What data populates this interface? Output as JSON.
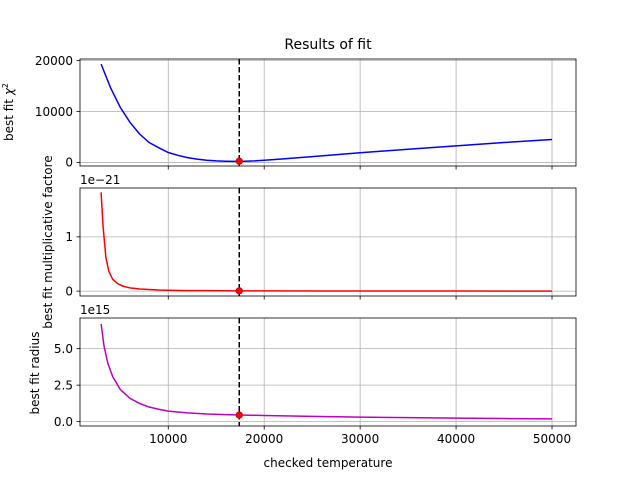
{
  "chart_data": {
    "type": "line",
    "title": "Results of fit",
    "xlabel": "checked temperature",
    "shared_x": true,
    "xlim": [
      800,
      52500
    ],
    "x_ticks": [
      10000,
      20000,
      30000,
      40000,
      50000
    ],
    "x_tick_labels": [
      "10000",
      "20000",
      "30000",
      "40000",
      "50000"
    ],
    "best_fit_temperature": 17400,
    "grid": true,
    "panels": [
      {
        "ylabel_prefix": "best fit ",
        "ylabel_symbol": "χ",
        "ylabel_sup": "2",
        "offset_text": "",
        "ylim": [
          -700,
          20300
        ],
        "y_ticks": [
          0,
          10000,
          20000
        ],
        "y_tick_labels": [
          "0",
          "10000",
          "20000"
        ],
        "series_color": "#0000ff",
        "marker_value": 250,
        "series": [
          {
            "x": [
              3000,
              4000,
              5000,
              6000,
              7000,
              8000,
              9000,
              10000,
              11000,
              12000,
              13000,
              14000,
              15000,
              16000,
              17000,
              17400,
              18000,
              19000,
              20000,
              22000,
              25000,
              30000,
              35000,
              40000,
              45000,
              50000
            ],
            "y": [
              19300,
              14600,
              10800,
              7900,
              5600,
              3900,
              2900,
              1950,
              1400,
              950,
              650,
              420,
              300,
              230,
              200,
              200,
              230,
              300,
              420,
              700,
              1150,
              1900,
              2600,
              3250,
              3900,
              4500
            ]
          }
        ]
      },
      {
        "ylabel": "best fit multiplicative factore",
        "offset_text": "1e−21",
        "ylim": [
          -0.09,
          1.9
        ],
        "y_ticks": [
          0,
          1
        ],
        "y_tick_labels": [
          "0",
          "1"
        ],
        "series_color": "#ff0000",
        "marker_value": 0.005,
        "series": [
          {
            "x": [
              3000,
              3200,
              3500,
              3800,
              4200,
              4700,
              5300,
              6000,
              7000,
              8000,
              9000,
              10000,
              12000,
              14000,
              17400,
              20000,
              25000,
              30000,
              40000,
              50000
            ],
            "y": [
              1.82,
              1.2,
              0.62,
              0.37,
              0.22,
              0.14,
              0.09,
              0.06,
              0.04,
              0.03,
              0.02,
              0.015,
              0.01,
              0.008,
              0.005,
              0.004,
              0.003,
              0.002,
              0.001,
              0.0005
            ]
          }
        ]
      },
      {
        "ylabel": "best fit radius",
        "offset_text": "1e15",
        "ylim": [
          -0.3,
          7.1
        ],
        "y_ticks": [
          0,
          2.5,
          5
        ],
        "y_tick_labels": [
          "0.0",
          "2.5",
          "5.0"
        ],
        "series_color": "#bf00bf",
        "marker_value": 0.45,
        "series": [
          {
            "x": [
              3000,
              3300,
              3700,
              4200,
              5000,
              6000,
              7000,
              8000,
              9000,
              10000,
              12000,
              14000,
              17400,
              20000,
              25000,
              30000,
              35000,
              40000,
              45000,
              50000
            ],
            "y": [
              6.7,
              5.2,
              4.0,
              3.1,
              2.2,
              1.6,
              1.25,
              1.0,
              0.85,
              0.72,
              0.6,
              0.52,
              0.45,
              0.42,
              0.36,
              0.31,
              0.27,
              0.24,
              0.21,
              0.19
            ]
          }
        ]
      }
    ]
  }
}
